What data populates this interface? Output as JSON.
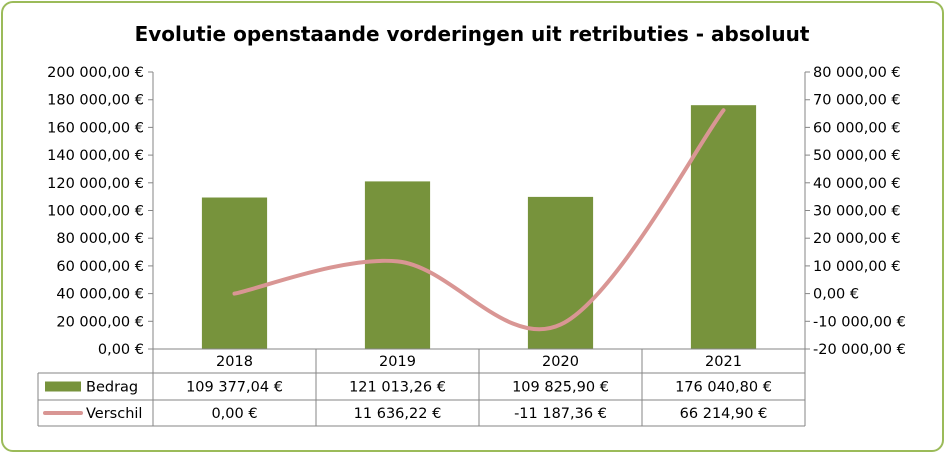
{
  "chart_data": {
    "type": "bar",
    "title": "Evolutie openstaande vorderingen uit retributies - absoluut",
    "categories": [
      "2018",
      "2019",
      "2020",
      "2021"
    ],
    "series": [
      {
        "name": "Bedrag",
        "chart_type": "bar",
        "axis": "left",
        "color": "#77933c",
        "values": [
          109377.04,
          121013.26,
          109825.9,
          176040.8
        ],
        "labels": [
          "109 377,04 €",
          "121 013,26 €",
          "109 825,90 €",
          "176 040,80 €"
        ]
      },
      {
        "name": "Verschil",
        "chart_type": "line",
        "smooth": true,
        "axis": "right",
        "color": "#d99694",
        "values": [
          0,
          11636.22,
          -11187.36,
          66214.9
        ],
        "labels": [
          "0,00 €",
          "11 636,22 €",
          "-11 187,36 €",
          "66 214,90 €"
        ]
      }
    ],
    "y_left": {
      "min": 0,
      "max": 200000,
      "step": 20000,
      "tick_labels": [
        "0,00 €",
        "20 000,00 €",
        "40 000,00 €",
        "60 000,00 €",
        "80 000,00 €",
        "100 000,00 €",
        "120 000,00 €",
        "140 000,00 €",
        "160 000,00 €",
        "180 000,00 €",
        "200 000,00 €"
      ]
    },
    "y_right": {
      "min": -20000,
      "max": 80000,
      "step": 10000,
      "tick_labels": [
        "-20 000,00 €",
        "-10 000,00 €",
        "0,00 €",
        "10 000,00 €",
        "20 000,00 €",
        "30 000,00 €",
        "40 000,00 €",
        "50 000,00 €",
        "60 000,00 €",
        "70 000,00 €",
        "80 000,00 €"
      ]
    },
    "grid": false,
    "legend": "data-table"
  }
}
